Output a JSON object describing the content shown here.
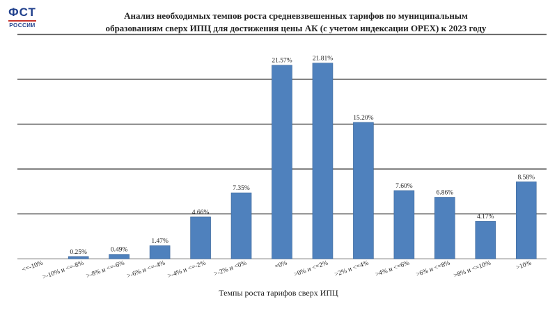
{
  "logo": {
    "main": "ФСТ",
    "sub": "РОССИИ"
  },
  "title": {
    "line1": "Анализ необходимых темпов роста средневзвешенных тарифов по муниципальным",
    "line2": "образованиям сверх ИПЦ для достижения цены АК (с учетом индексации OPEX) к 2023 году"
  },
  "chart_data": {
    "type": "bar",
    "categories": [
      "<=-10%",
      ">-10% и <=-8%",
      ">-8% и <=-6%",
      ">-6% и <=-4%",
      ">-4% и <=-2%",
      ">-2% и <0%",
      "=0%",
      ">0% и <=2%",
      ">2% и <=4%",
      ">4% и <=6%",
      ">6% и <=8%",
      ">8% и <=10%",
      ">10%"
    ],
    "values": [
      0,
      0.25,
      0.49,
      1.47,
      4.66,
      7.35,
      21.57,
      21.81,
      15.2,
      7.6,
      6.86,
      4.17,
      8.58
    ],
    "value_labels": [
      "",
      "0.25%",
      "0.49%",
      "1.47%",
      "4.66%",
      "7.35%",
      "21.57%",
      "21.81%",
      "15.20%",
      "7.60%",
      "6.86%",
      "4.17%",
      "8.58%"
    ],
    "xlabel": "Темпы роста тарифов сверх ИПЦ",
    "ylabel": "",
    "ylim": [
      0,
      25
    ],
    "gridlines": [
      5,
      10,
      15,
      20,
      25
    ],
    "grid": true,
    "bar_color": "#4f81bd",
    "bar_border": "#3c6698",
    "grid_color": "#595959"
  }
}
